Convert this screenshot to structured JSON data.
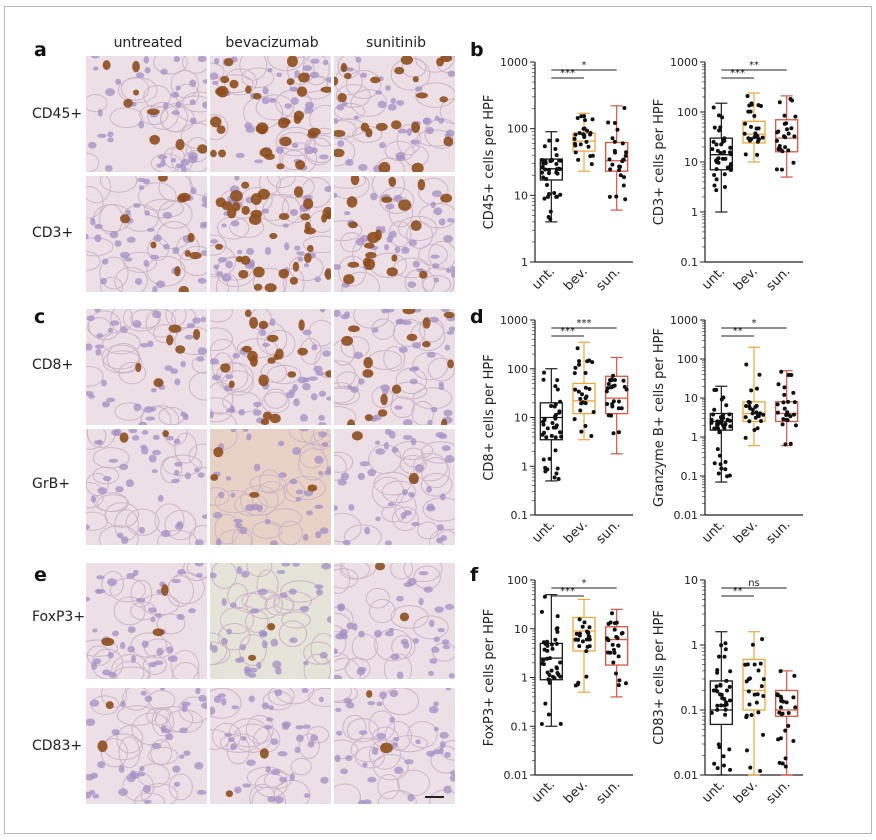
{
  "figure": {
    "panel_letters": [
      "a",
      "b",
      "c",
      "d",
      "e",
      "f"
    ],
    "column_headers": [
      "untreated",
      "bevacizumab",
      "sunitinib"
    ],
    "row_labels": [
      "CD45+",
      "CD3+",
      "CD8+",
      "GrB+",
      "FoxP3+",
      "CD83+"
    ]
  },
  "colors": {
    "unt": "#1a1a1a",
    "bev": "#f0a63a",
    "sun": "#e0533f",
    "tissue_bg": "#ecdfe6",
    "nuclei": "#a38fc5",
    "stain_brown": "#8e4e1c"
  },
  "chart_data": [
    {
      "type": "box",
      "panel": "b",
      "ylabel": "CD45+ cells per HPF",
      "yscale": "log",
      "ylim": [
        1,
        1000
      ],
      "yticks": [
        "1",
        "10",
        "100",
        "1000"
      ],
      "categories": [
        "unt.",
        "bev.",
        "sun."
      ],
      "boxes": [
        {
          "min": 4,
          "q1": 17,
          "median": 25,
          "q3": 35,
          "max": 90
        },
        {
          "min": 23,
          "q1": 46,
          "median": 65,
          "q3": 85,
          "max": 170
        },
        {
          "min": 6,
          "q1": 23,
          "median": 33,
          "q3": 62,
          "max": 220
        }
      ],
      "significance": [
        {
          "from": 0,
          "to": 1,
          "label": "***"
        },
        {
          "from": 0,
          "to": 2,
          "label": "*"
        }
      ]
    },
    {
      "type": "box",
      "panel": "b",
      "ylabel": "CD3+ cells per HPF",
      "yscale": "log",
      "ylim": [
        0.1,
        1000
      ],
      "yticks": [
        "0.1",
        "1",
        "10",
        "100",
        "1000"
      ],
      "categories": [
        "unt.",
        "bev.",
        "sun."
      ],
      "boxes": [
        {
          "min": 1,
          "q1": 7,
          "median": 14,
          "q3": 30,
          "max": 150
        },
        {
          "min": 10,
          "q1": 24,
          "median": 36,
          "q3": 65,
          "max": 240
        },
        {
          "min": 5,
          "q1": 16,
          "median": 30,
          "q3": 70,
          "max": 210
        }
      ],
      "significance": [
        {
          "from": 0,
          "to": 1,
          "label": "***"
        },
        {
          "from": 0,
          "to": 2,
          "label": "**"
        }
      ]
    },
    {
      "type": "box",
      "panel": "d",
      "ylabel": "CD8+ cells per HPF",
      "yscale": "log",
      "ylim": [
        0.1,
        1000
      ],
      "yticks": [
        "0.1",
        "1",
        "10",
        "100",
        "1000"
      ],
      "categories": [
        "unt.",
        "bev.",
        "sun."
      ],
      "boxes": [
        {
          "min": 0.5,
          "q1": 3.5,
          "median": 10,
          "q3": 20,
          "max": 100
        },
        {
          "min": 3.5,
          "q1": 12,
          "median": 22,
          "q3": 50,
          "max": 350
        },
        {
          "min": 1.8,
          "q1": 12,
          "median": 25,
          "q3": 70,
          "max": 170
        }
      ],
      "significance": [
        {
          "from": 0,
          "to": 1,
          "label": "***"
        },
        {
          "from": 0,
          "to": 2,
          "label": "***"
        }
      ]
    },
    {
      "type": "box",
      "panel": "d",
      "ylabel": "Granzyme B+ cells per HPF",
      "yscale": "log",
      "ylim": [
        0.01,
        1000
      ],
      "yticks": [
        "0.01",
        "0.1",
        "1",
        "10",
        "100",
        "1000"
      ],
      "categories": [
        "unt.",
        "bev.",
        "sun."
      ],
      "boxes": [
        {
          "min": 0.07,
          "q1": 1.5,
          "median": 2.5,
          "q3": 4,
          "max": 20
        },
        {
          "min": 0.6,
          "q1": 2.5,
          "median": 4,
          "q3": 8,
          "max": 200
        },
        {
          "min": 0.6,
          "q1": 2.5,
          "median": 4,
          "q3": 8,
          "max": 50
        }
      ],
      "significance": [
        {
          "from": 0,
          "to": 1,
          "label": "**"
        },
        {
          "from": 0,
          "to": 2,
          "label": "*"
        }
      ]
    },
    {
      "type": "box",
      "panel": "f",
      "ylabel": "FoxP3+ cells per HPF",
      "yscale": "log",
      "ylim": [
        0.01,
        100
      ],
      "yticks": [
        "0.01",
        "0.1",
        "1",
        "10",
        "100"
      ],
      "categories": [
        "unt.",
        "bev.",
        "sun."
      ],
      "boxes": [
        {
          "min": 0.1,
          "q1": 0.9,
          "median": 2.5,
          "q3": 5,
          "max": 50
        },
        {
          "min": 0.5,
          "q1": 3.5,
          "median": 9,
          "q3": 17,
          "max": 40
        },
        {
          "min": 0.4,
          "q1": 1.8,
          "median": 6,
          "q3": 11,
          "max": 25
        }
      ],
      "significance": [
        {
          "from": 0,
          "to": 1,
          "label": "***"
        },
        {
          "from": 0,
          "to": 2,
          "label": "*"
        }
      ]
    },
    {
      "type": "box",
      "panel": "f",
      "ylabel": "CD83+ cells per HPF",
      "yscale": "log",
      "ylim": [
        0.01,
        10
      ],
      "yticks": [
        "0.01",
        "0.1",
        "1",
        "10"
      ],
      "categories": [
        "unt.",
        "bev.",
        "sun."
      ],
      "boxes": [
        {
          "min": 0.01,
          "q1": 0.06,
          "median": 0.1,
          "q3": 0.28,
          "max": 1.6
        },
        {
          "min": 0.01,
          "q1": 0.1,
          "median": 0.2,
          "q3": 0.6,
          "max": 1.6
        },
        {
          "min": 0.01,
          "q1": 0.08,
          "median": 0.1,
          "q3": 0.2,
          "max": 0.4
        }
      ],
      "significance": [
        {
          "from": 0,
          "to": 1,
          "label": "**"
        },
        {
          "from": 0,
          "to": 2,
          "label": "ns"
        }
      ]
    }
  ]
}
